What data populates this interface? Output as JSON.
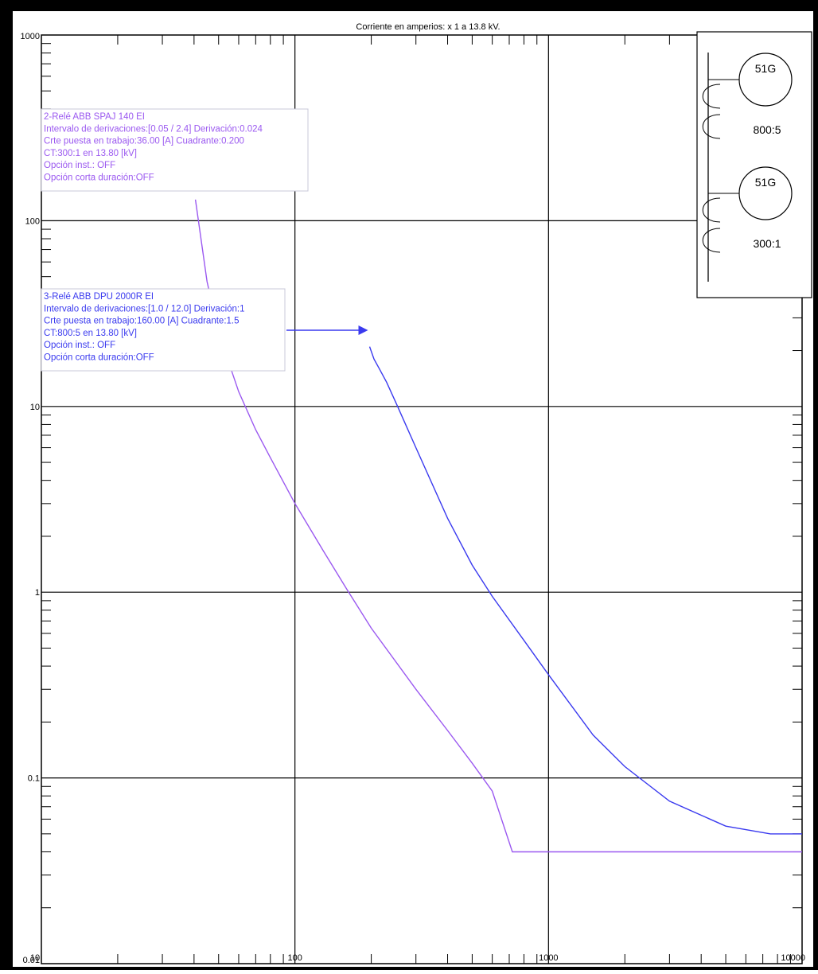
{
  "chart_data": {
    "type": "line",
    "title": "Corriente en amperios: x 1 a 13.8 kV.",
    "xlabel": "",
    "ylabel": "",
    "xscale": "log",
    "yscale": "log",
    "xlim": [
      10,
      10000
    ],
    "ylim": [
      0.01,
      1000
    ],
    "grid": true,
    "x_tick_labels": [
      "10",
      "100",
      "1000",
      "10000"
    ],
    "y_tick_labels": [
      "0.01",
      "0.1",
      "1",
      "10",
      "100",
      "1000"
    ],
    "series": [
      {
        "color": "#9b59f0",
        "x": [
          40.5,
          45,
          50,
          60,
          70,
          80,
          100,
          130,
          160,
          200,
          300,
          400,
          500,
          600,
          720,
          800,
          1000,
          2000,
          5000,
          10000
        ],
        "y": [
          130,
          47,
          25,
          12,
          7.5,
          5.3,
          3.0,
          1.65,
          1.04,
          0.64,
          0.3,
          0.18,
          0.12,
          0.085,
          0.04,
          0.04,
          0.04,
          0.04,
          0.04,
          0.04
        ]
      },
      {
        "color": "#3a3aef",
        "x": [
          197,
          205,
          215,
          230,
          250,
          300,
          400,
          500,
          600,
          800,
          1000,
          1500,
          2000,
          3000,
          5000,
          7500,
          10000
        ],
        "y": [
          21,
          18,
          16,
          13.5,
          10.5,
          6.0,
          2.5,
          1.4,
          0.95,
          0.55,
          0.36,
          0.17,
          0.115,
          0.075,
          0.055,
          0.05,
          0.05
        ]
      }
    ],
    "annotations": [
      {
        "color": "#9b59f0",
        "lines": [
          "2-Relé  ABB SPAJ 140 EI",
          "Intervalo de derivaciones:[0.05 / 2.4] Derivación:0.024",
          "Crte puesta en trabajo:36.00 [A] Cuadrante:0.200",
          "CT:300:1 en 13.80 [kV]",
          "Opción inst.: OFF",
          "Opción corta duración:OFF"
        ]
      },
      {
        "color": "#3a3aef",
        "lines": [
          "3-Relé  ABB DPU 2000R EI",
          "Intervalo de derivaciones:[1.0 / 12.0] Derivación:1",
          "Crte puesta en trabajo:160.00 [A] Cuadrante:1.5",
          "CT:800:5 en 13.80 [kV]",
          "Opción inst.: OFF",
          "Opción corta duración:OFF"
        ]
      }
    ],
    "oneline": {
      "relays": [
        {
          "label": "51G",
          "ratio": "800:5"
        },
        {
          "label": "51G",
          "ratio": "300:1"
        }
      ]
    }
  }
}
